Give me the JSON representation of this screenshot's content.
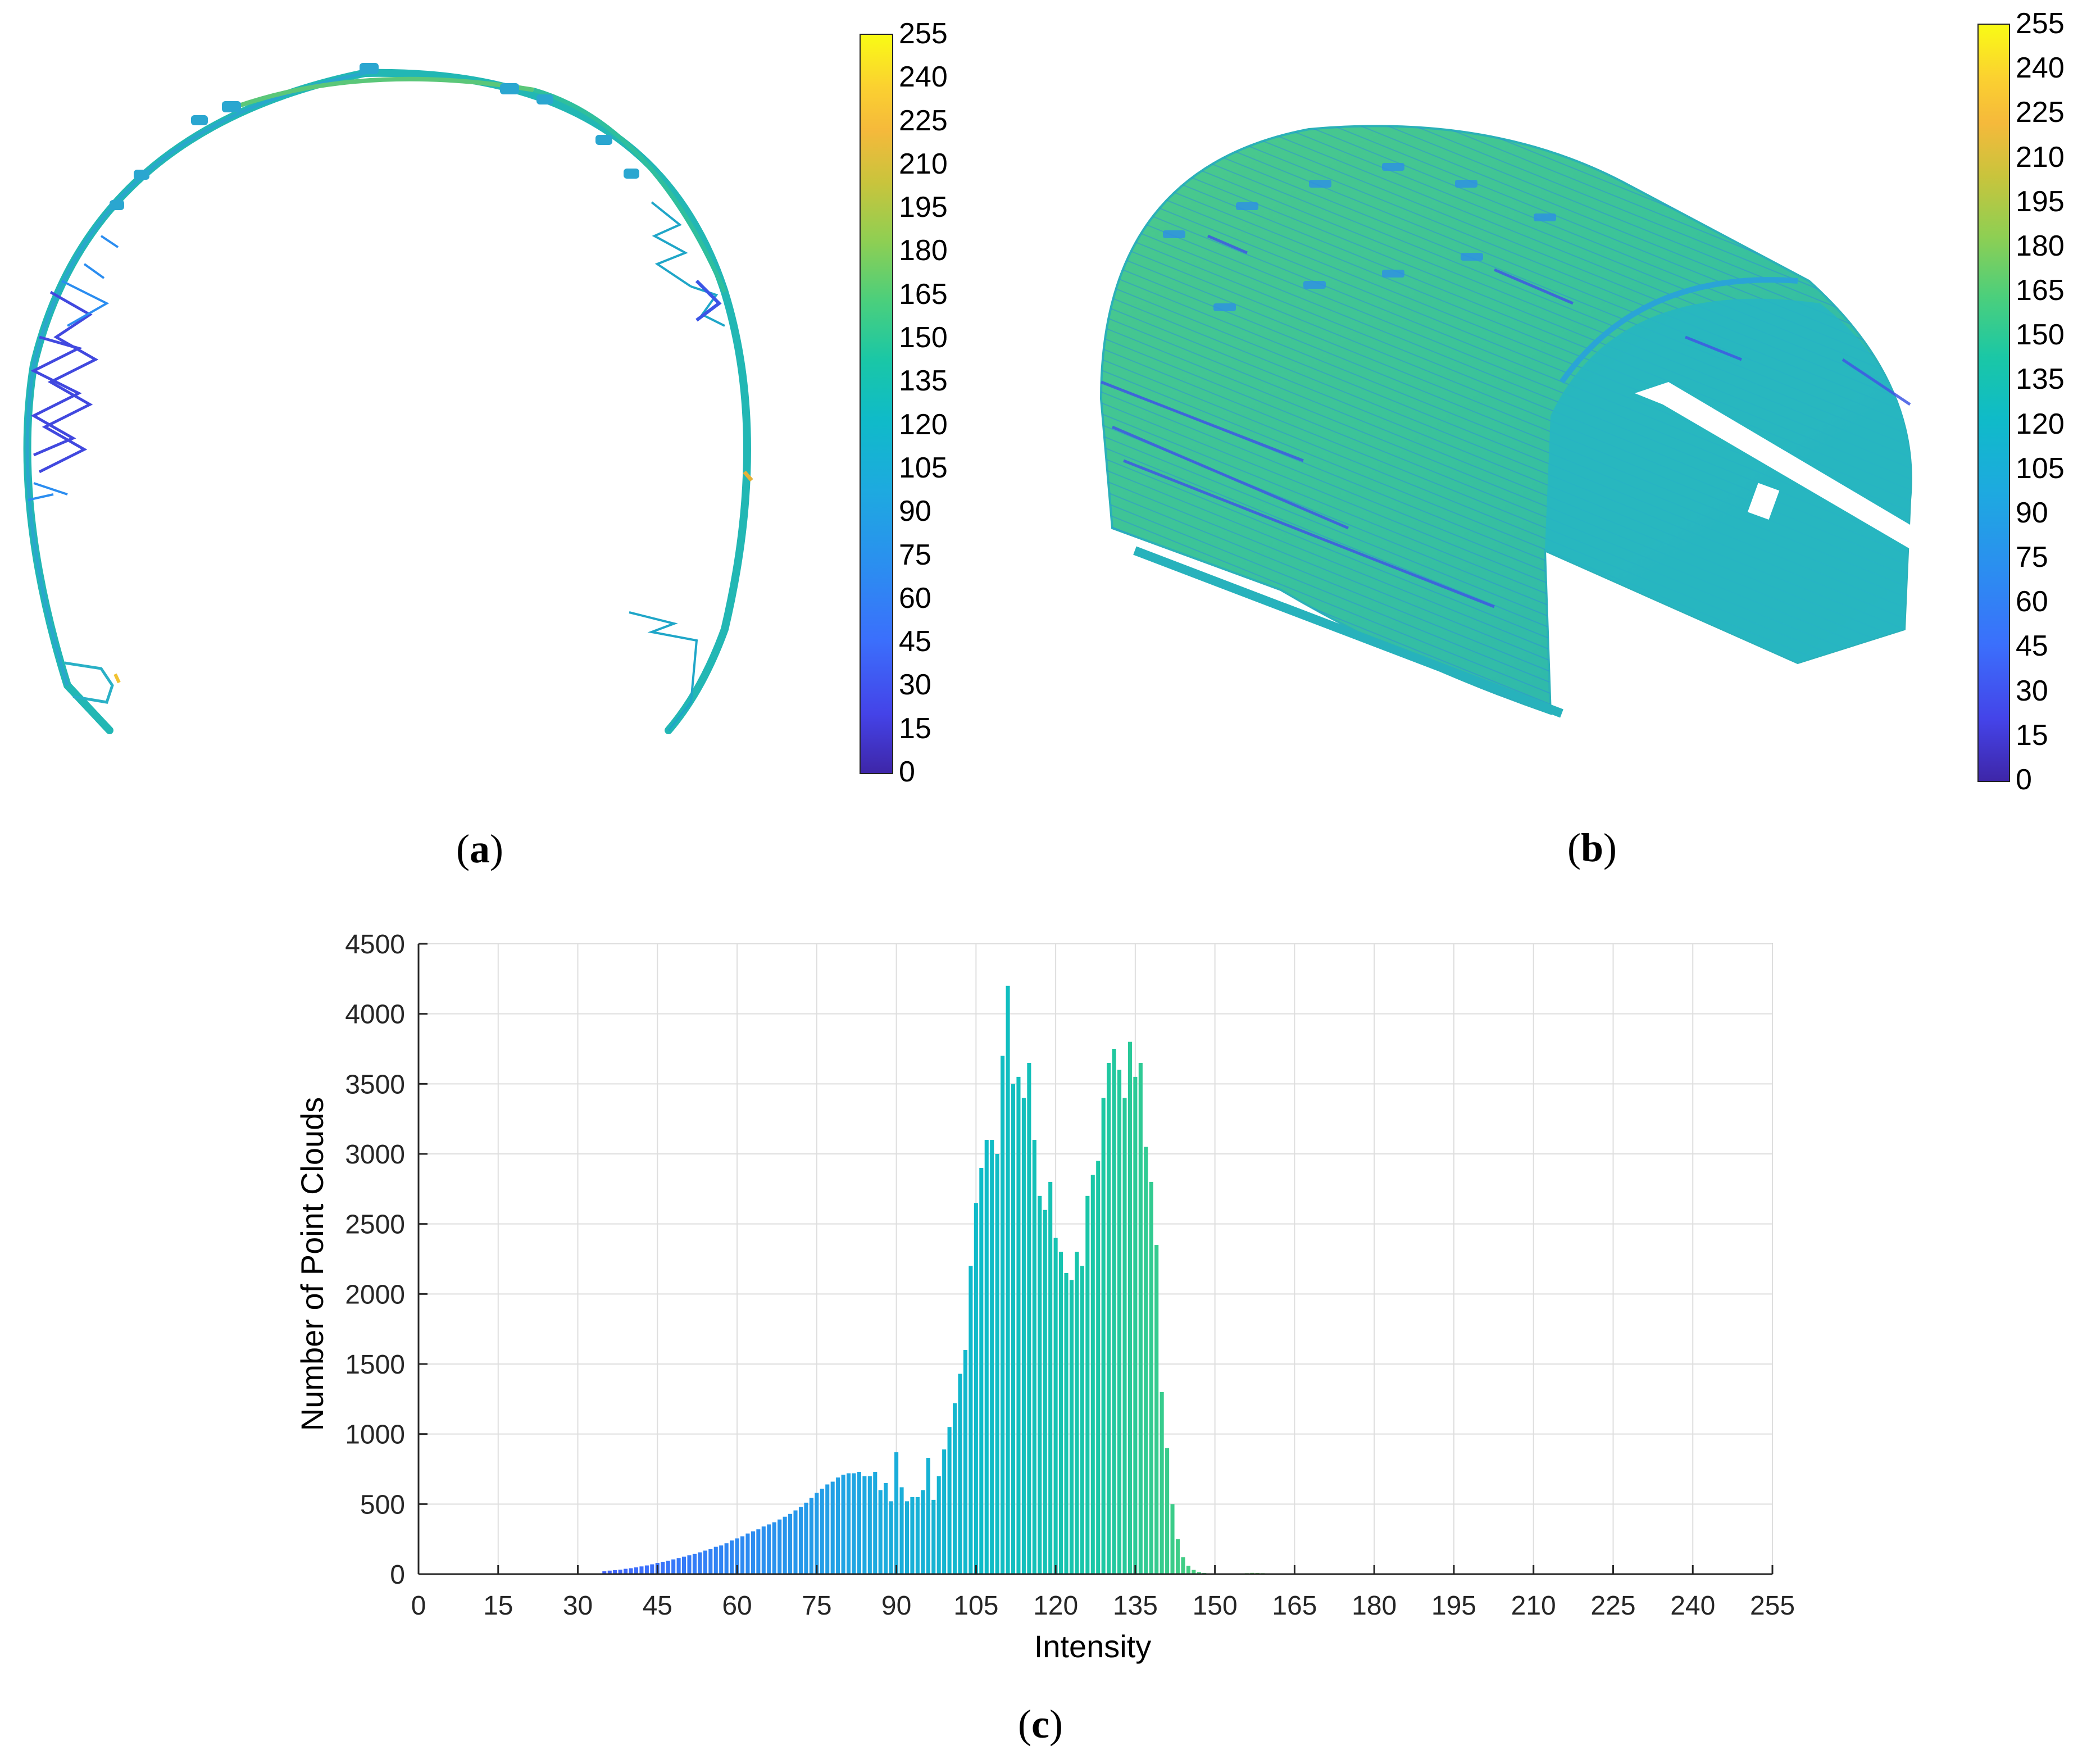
{
  "panels": {
    "a": {
      "label": "a"
    },
    "b": {
      "label": "b"
    },
    "c": {
      "label": "c"
    }
  },
  "colorbar": {
    "ticks": [
      "255",
      "240",
      "225",
      "210",
      "195",
      "180",
      "165",
      "150",
      "135",
      "120",
      "105",
      "90",
      "75",
      "60",
      "45",
      "30",
      "15",
      "0"
    ],
    "colormap": [
      "#3e26a8",
      "#4443e8",
      "#3b6ffc",
      "#2b8ef0",
      "#1ea9e0",
      "#0fbbc8",
      "#1ac7a6",
      "#4bcf7c",
      "#8ecf53",
      "#c9c43c",
      "#f5b93b",
      "#fbd130",
      "#f9fb15"
    ]
  },
  "point_cloud_a": {
    "shape": "arch cross-section",
    "dominant_colors": [
      "#1fb8b0",
      "#2ec0a0",
      "#5ac878",
      "#3a7ff0",
      "#4a55e0"
    ]
  },
  "point_cloud_b": {
    "shape": "3D tunnel segment",
    "dominant_colors": [
      "#2cbfa8",
      "#4cc98a",
      "#2aa8d8",
      "#3a6ff0"
    ]
  },
  "chart_data": {
    "type": "bar",
    "title": "",
    "xlabel": "Intensity",
    "ylabel": "Number of Point Clouds",
    "xlim": [
      0,
      255
    ],
    "ylim": [
      0,
      4500
    ],
    "xticks": [
      0,
      15,
      30,
      45,
      60,
      75,
      90,
      105,
      120,
      135,
      150,
      165,
      180,
      195,
      210,
      225,
      240,
      255
    ],
    "yticks": [
      0,
      500,
      1000,
      1500,
      2000,
      2500,
      3000,
      3500,
      4000,
      4500
    ],
    "grid": true,
    "x": [
      35,
      36,
      37,
      38,
      39,
      40,
      41,
      42,
      43,
      44,
      45,
      46,
      47,
      48,
      49,
      50,
      51,
      52,
      53,
      54,
      55,
      56,
      57,
      58,
      59,
      60,
      61,
      62,
      63,
      64,
      65,
      66,
      67,
      68,
      69,
      70,
      71,
      72,
      73,
      74,
      75,
      76,
      77,
      78,
      79,
      80,
      81,
      82,
      83,
      84,
      85,
      86,
      87,
      88,
      89,
      90,
      91,
      92,
      93,
      94,
      95,
      96,
      97,
      98,
      99,
      100,
      101,
      102,
      103,
      104,
      105,
      106,
      107,
      108,
      109,
      110,
      111,
      112,
      113,
      114,
      115,
      116,
      117,
      118,
      119,
      120,
      121,
      122,
      123,
      124,
      125,
      126,
      127,
      128,
      129,
      130,
      131,
      132,
      133,
      134,
      135,
      136,
      137,
      138,
      139,
      140,
      141,
      142,
      143,
      144,
      145,
      146,
      147,
      148,
      149,
      150,
      151,
      152,
      153,
      154,
      155,
      156,
      157,
      158,
      159,
      160,
      161,
      162,
      163,
      164,
      165,
      166,
      167,
      168,
      182,
      183,
      225,
      226,
      228,
      230,
      231,
      232,
      234,
      235,
      236,
      237,
      238,
      239,
      240
    ],
    "values": [
      20,
      25,
      28,
      32,
      38,
      42,
      48,
      55,
      62,
      70,
      80,
      88,
      95,
      105,
      115,
      125,
      135,
      145,
      155,
      168,
      180,
      195,
      205,
      220,
      240,
      255,
      270,
      290,
      305,
      320,
      340,
      355,
      370,
      390,
      410,
      430,
      455,
      480,
      510,
      545,
      580,
      610,
      640,
      660,
      690,
      710,
      720,
      720,
      730,
      700,
      700,
      730,
      600,
      650,
      520,
      870,
      620,
      520,
      550,
      550,
      600,
      830,
      530,
      700,
      890,
      1050,
      1220,
      1430,
      1600,
      2200,
      2650,
      2900,
      3100,
      3100,
      3000,
      3700,
      4200,
      3500,
      3550,
      3400,
      3650,
      3100,
      2700,
      2600,
      2800,
      2400,
      2300,
      2150,
      2100,
      2300,
      2200,
      2700,
      2850,
      2950,
      3400,
      3650,
      3750,
      3600,
      3400,
      3800,
      3550,
      3650,
      3050,
      2800,
      2350,
      1300,
      900,
      500,
      250,
      120,
      60,
      30,
      15,
      8,
      5,
      3,
      2,
      3,
      4,
      5,
      6,
      7,
      9,
      8,
      7,
      6,
      5,
      4,
      3,
      2,
      1,
      1,
      1,
      1,
      2,
      4,
      4,
      3,
      3,
      3,
      3,
      3,
      3,
      3,
      3,
      3,
      3,
      3,
      3
    ]
  }
}
